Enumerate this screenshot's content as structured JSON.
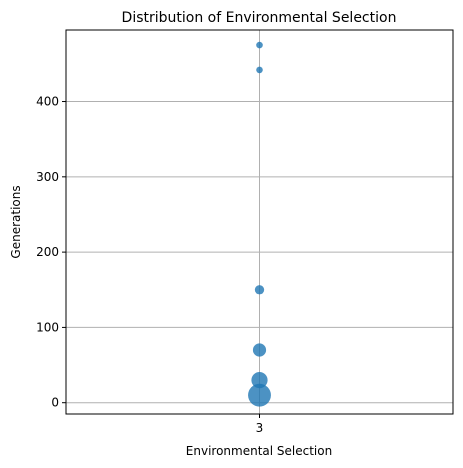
{
  "chart_data": {
    "type": "scatter",
    "title": "Distribution of Environmental Selection",
    "xlabel": "Environmental Selection",
    "ylabel": "Generations",
    "categories": [
      "3"
    ],
    "ylim": [
      -15,
      495
    ],
    "yticks": [
      "0",
      "100",
      "200",
      "300",
      "400"
    ],
    "grid": true,
    "colors": {
      "marker": "#1f77b4",
      "grid": "#b0b0b0"
    },
    "points": [
      {
        "x": "3",
        "y": 475,
        "size": 1
      },
      {
        "x": "3",
        "y": 442,
        "size": 1
      },
      {
        "x": "3",
        "y": 150,
        "size": 2
      },
      {
        "x": "3",
        "y": 70,
        "size": 4
      },
      {
        "x": "3",
        "y": 30,
        "size": 6
      },
      {
        "x": "3",
        "y": 10,
        "size": 12
      }
    ]
  }
}
